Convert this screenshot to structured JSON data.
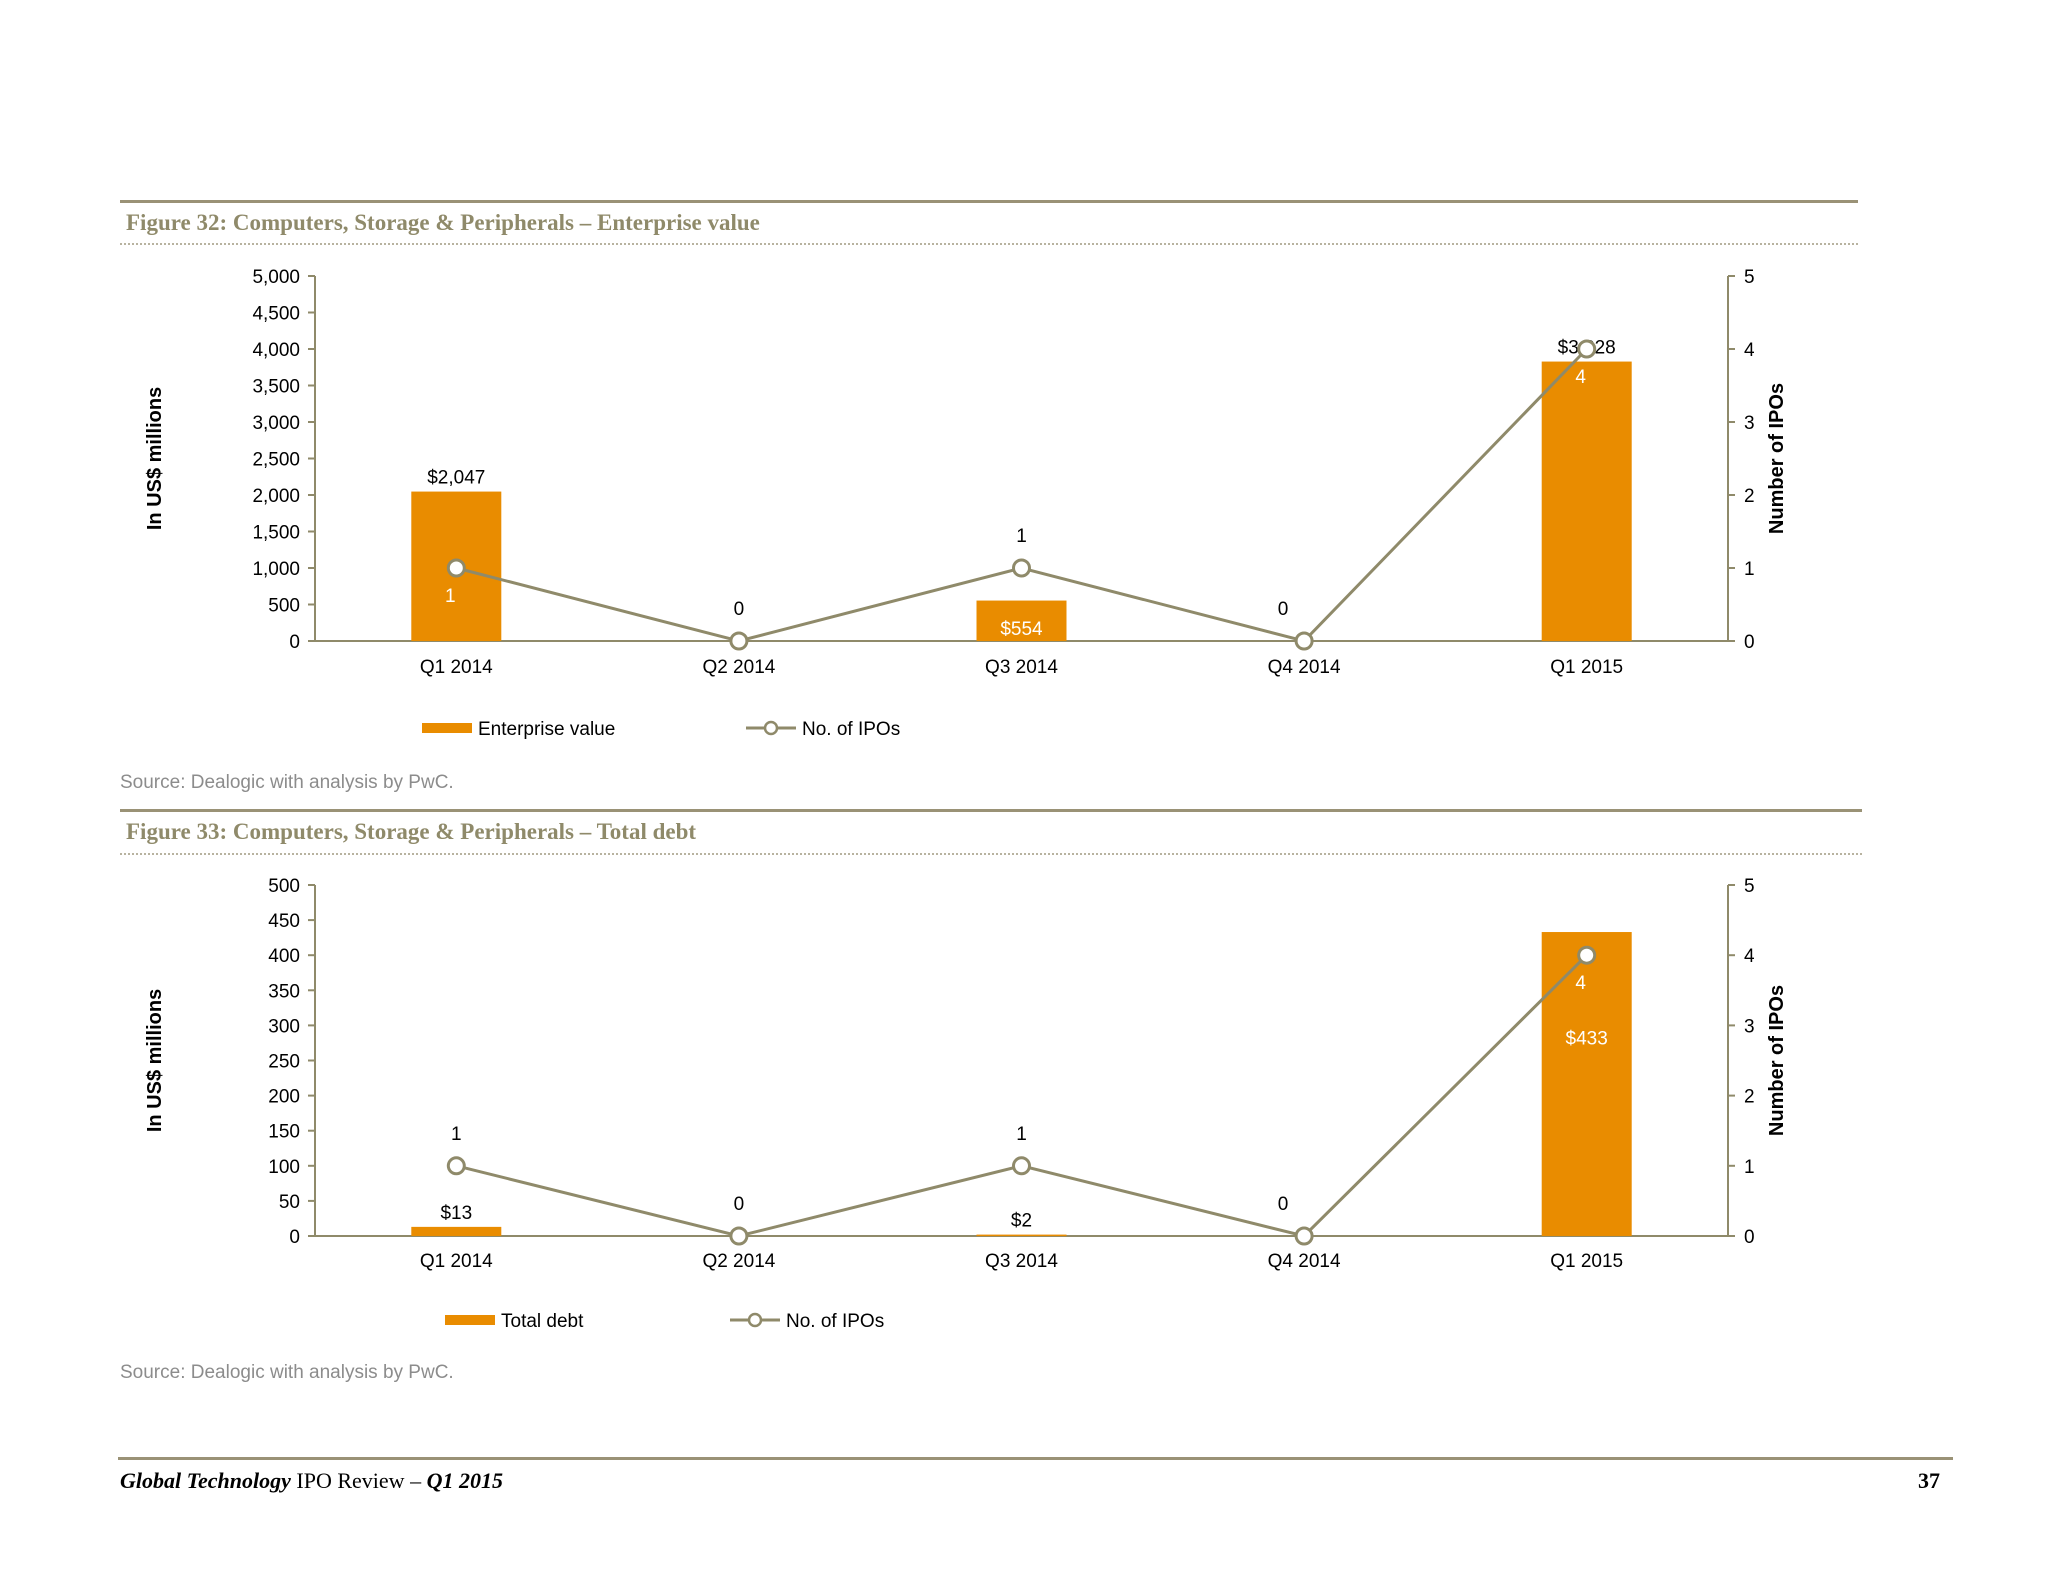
{
  "colors": {
    "bar": "#e98c00",
    "line": "#8f8a6a",
    "rule": "#9a9276"
  },
  "figures": [
    {
      "title": "Figure 32: Computers, Storage & Peripherals – Enterprise value",
      "source": "Source: Dealogic with analysis by PwC.",
      "chart_data": {
        "type": "bar",
        "categories": [
          "Q1 2014",
          "Q2 2014",
          "Q3 2014",
          "Q4 2014",
          "Q1 2015"
        ],
        "series": [
          {
            "name": "Enterprise value",
            "type": "bar",
            "axis": "left",
            "values": [
              2047,
              0,
              554,
              0,
              3828
            ],
            "labels": [
              "$2,047",
              "",
              "$554",
              "",
              "$3,828"
            ]
          },
          {
            "name": "No. of IPOs",
            "type": "line",
            "axis": "right",
            "values": [
              1,
              0,
              1,
              0,
              4
            ],
            "labels": [
              "1",
              "0",
              "1",
              "0",
              "4"
            ]
          }
        ],
        "ylabel": "In US$ millions",
        "y2label": "Number of IPOs",
        "ylim": [
          0,
          5000
        ],
        "y2lim": [
          0,
          5
        ],
        "yticks": [
          "0",
          "500",
          "1,000",
          "1,500",
          "2,000",
          "2,500",
          "3,000",
          "3,500",
          "4,000",
          "4,500",
          "5,000"
        ],
        "y2ticks": [
          "0",
          "1",
          "2",
          "3",
          "4",
          "5"
        ],
        "legend": [
          "Enterprise value",
          "No. of IPOs"
        ],
        "legend_position": "bottom",
        "grid": false
      }
    },
    {
      "title": "Figure 33: Computers, Storage & Peripherals – Total debt",
      "source": "Source: Dealogic with analysis by PwC.",
      "chart_data": {
        "type": "bar",
        "categories": [
          "Q1 2014",
          "Q2 2014",
          "Q3 2014",
          "Q4 2014",
          "Q1 2015"
        ],
        "series": [
          {
            "name": "Total debt",
            "type": "bar",
            "axis": "left",
            "values": [
              13,
              0,
              2,
              0,
              433
            ],
            "labels": [
              "$13",
              "",
              "$2",
              "",
              "$433"
            ]
          },
          {
            "name": "No. of IPOs",
            "type": "line",
            "axis": "right",
            "values": [
              1,
              0,
              1,
              0,
              4
            ],
            "labels": [
              "1",
              "0",
              "1",
              "0",
              "4"
            ]
          }
        ],
        "ylabel": "In US$ millions",
        "y2label": "Number of IPOs",
        "ylim": [
          0,
          500
        ],
        "y2lim": [
          0,
          5
        ],
        "yticks": [
          "0",
          "50",
          "100",
          "150",
          "200",
          "250",
          "300",
          "350",
          "400",
          "450",
          "500"
        ],
        "y2ticks": [
          "0",
          "1",
          "2",
          "3",
          "4",
          "5"
        ],
        "legend": [
          "Total debt",
          "No. of IPOs"
        ],
        "legend_position": "bottom",
        "grid": false
      }
    }
  ],
  "footer": {
    "title_bold": "Global Technology",
    "title_mid": " IPO Review – ",
    "title_quarter": "Q1 2015",
    "page_number": "37"
  }
}
